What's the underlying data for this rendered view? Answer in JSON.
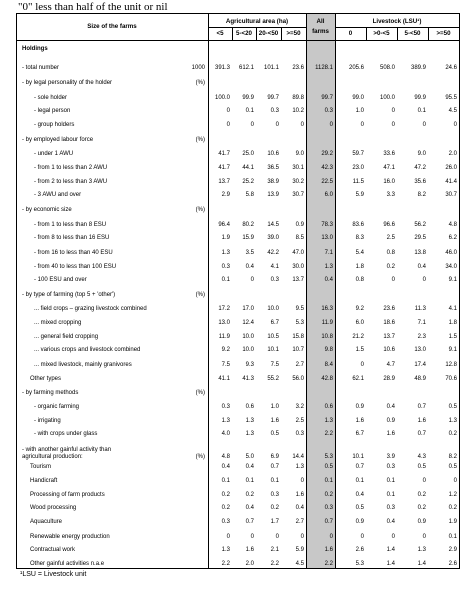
{
  "note": "\"0\" less than half of the unit or nil",
  "header": {
    "size_label": "Size of the farms",
    "agri_label": "Agricultural area (ha)",
    "all_label_1": "All",
    "all_label_2": "farms",
    "lsu_label": "Livestock (LSU¹)",
    "agri_cols": [
      "<5",
      "5-<20",
      "20-<50",
      ">=50"
    ],
    "lsu_cols": [
      "0",
      ">0-<5",
      "5-<50",
      ">=50"
    ]
  },
  "rows": [
    {
      "label": "Holdings",
      "indent": 0,
      "bold": true,
      "unit": "",
      "v": []
    },
    {
      "label": "- total number",
      "indent": 0,
      "unit": "1000",
      "v": [
        "391.3",
        "612.1",
        "101.1",
        "23.6",
        "1128.1",
        "205.6",
        "508.0",
        "389.9",
        "24.6"
      ]
    },
    {
      "label": "- by legal personality of the holder",
      "indent": 0,
      "unit": "(%)",
      "v": []
    },
    {
      "label": "- sole holder",
      "indent": 2,
      "unit": "",
      "v": [
        "100.0",
        "99.9",
        "99.7",
        "89.8",
        "99.7",
        "99.0",
        "100.0",
        "99.9",
        "95.5"
      ]
    },
    {
      "label": "- legal person",
      "indent": 2,
      "unit": "",
      "v": [
        "0",
        "0.1",
        "0.3",
        "10.2",
        "0.3",
        "1.0",
        "0",
        "0.1",
        "4.5"
      ]
    },
    {
      "label": "- group holders",
      "indent": 2,
      "unit": "",
      "v": [
        "0",
        "0",
        "0",
        "0",
        "0",
        "0",
        "0",
        "0",
        "0"
      ]
    },
    {
      "label": "- by employed labour force",
      "indent": 0,
      "unit": "(%)",
      "v": []
    },
    {
      "label": "- under 1 AWU",
      "indent": 2,
      "unit": "",
      "v": [
        "41.7",
        "25.0",
        "10.6",
        "9.0",
        "29.2",
        "59.7",
        "33.6",
        "9.0",
        "2.0"
      ]
    },
    {
      "label": "- from 1 to less than 2 AWU",
      "indent": 2,
      "unit": "",
      "v": [
        "41.7",
        "44.1",
        "36.5",
        "30.1",
        "42.3",
        "23.0",
        "47.1",
        "47.2",
        "26.0"
      ]
    },
    {
      "label": "- from 2 to less than 3 AWU",
      "indent": 2,
      "unit": "",
      "v": [
        "13.7",
        "25.2",
        "38.9",
        "30.2",
        "22.5",
        "11.5",
        "16.0",
        "35.6",
        "41.4"
      ]
    },
    {
      "label": "- 3 AWU and over",
      "indent": 2,
      "unit": "",
      "v": [
        "2.9",
        "5.8",
        "13.9",
        "30.7",
        "6.0",
        "5.9",
        "3.3",
        "8.2",
        "30.7"
      ]
    },
    {
      "label": "- by economic size",
      "indent": 0,
      "unit": "(%)",
      "v": []
    },
    {
      "label": "- from 1 to less than 8 ESU",
      "indent": 2,
      "unit": "",
      "v": [
        "96.4",
        "80.2",
        "14.5",
        "0.9",
        "78.3",
        "83.6",
        "96.6",
        "56.2",
        "4.8"
      ]
    },
    {
      "label": "- from 8 to less than 16 ESU",
      "indent": 2,
      "unit": "",
      "v": [
        "1.9",
        "15.9",
        "39.0",
        "8.5",
        "13.0",
        "8.3",
        "2.5",
        "29.5",
        "6.2"
      ]
    },
    {
      "label": "- from 16 to less than 40 ESU",
      "indent": 2,
      "unit": "",
      "v": [
        "1.3",
        "3.5",
        "42.2",
        "47.0",
        "7.1",
        "5.4",
        "0.8",
        "13.8",
        "46.0"
      ]
    },
    {
      "label": "- from 40 to less than 100 ESU",
      "indent": 2,
      "unit": "",
      "v": [
        "0.3",
        "0.4",
        "4.1",
        "30.0",
        "1.3",
        "1.8",
        "0.2",
        "0.4",
        "34.0"
      ]
    },
    {
      "label": "- 100 ESU and over",
      "indent": 2,
      "unit": "",
      "v": [
        "0.1",
        "0",
        "0.3",
        "13.7",
        "0.4",
        "0.8",
        "0",
        "0",
        "9.1"
      ]
    },
    {
      "label": "- by type of farming (top 5 + 'other')",
      "indent": 0,
      "unit": "(%)",
      "v": []
    },
    {
      "label": "... field crops – grazing livestock combined",
      "indent": 2,
      "unit": "",
      "v": [
        "17.2",
        "17.0",
        "10.0",
        "9.5",
        "16.3",
        "9.2",
        "23.6",
        "11.3",
        "4.1"
      ]
    },
    {
      "label": "... mixed cropping",
      "indent": 2,
      "unit": "",
      "v": [
        "13.0",
        "12.4",
        "6.7",
        "5.3",
        "11.9",
        "6.0",
        "18.6",
        "7.1",
        "1.8"
      ]
    },
    {
      "label": "... general field cropping",
      "indent": 2,
      "unit": "",
      "v": [
        "11.9",
        "10.0",
        "10.5",
        "15.8",
        "10.8",
        "21.2",
        "13.7",
        "2.3",
        "1.5"
      ]
    },
    {
      "label": "... various crops and livestock combined",
      "indent": 2,
      "unit": "",
      "v": [
        "9.2",
        "10.0",
        "10.1",
        "10.7",
        "9.8",
        "1.5",
        "10.6",
        "13.0",
        "9.1"
      ]
    },
    {
      "label": "... mixed livestock, mainly granivores",
      "indent": 2,
      "unit": "",
      "v": [
        "7.5",
        "9.3",
        "7.5",
        "2.7",
        "8.4",
        "0",
        "4.7",
        "17.4",
        "12.8"
      ]
    },
    {
      "label": "Other types",
      "indent": 1,
      "unit": "",
      "v": [
        "41.1",
        "41.3",
        "55.2",
        "56.0",
        "42.8",
        "62.1",
        "28.9",
        "48.9",
        "70.6"
      ]
    },
    {
      "label": "- by farming methods",
      "indent": 0,
      "unit": "(%)",
      "v": []
    },
    {
      "label": "- organic farming",
      "indent": 2,
      "unit": "",
      "v": [
        "0.3",
        "0.6",
        "1.0",
        "3.2",
        "0.6",
        "0.9",
        "0.4",
        "0.7",
        "0.5"
      ]
    },
    {
      "label": "- irrigating",
      "indent": 2,
      "unit": "",
      "v": [
        "1.3",
        "1.3",
        "1.6",
        "2.5",
        "1.3",
        "1.6",
        "0.9",
        "1.6",
        "1.3"
      ]
    },
    {
      "label": "- with crops under glass",
      "indent": 2,
      "unit": "",
      "v": [
        "4.0",
        "1.3",
        "0.5",
        "0.3",
        "2.2",
        "6.7",
        "1.6",
        "0.7",
        "0.2"
      ]
    },
    {
      "label": "- with another gainful activity than",
      "label2": "agricultural production:",
      "indent": 0,
      "unit": "(%)",
      "v": [
        "4.8",
        "5.0",
        "6.9",
        "14.4",
        "5.3",
        "10.1",
        "3.9",
        "4.3",
        "8.2"
      ]
    },
    {
      "label": "Tourism",
      "indent": 1,
      "unit": "",
      "v": [
        "0.4",
        "0.4",
        "0.7",
        "1.3",
        "0.5",
        "0.7",
        "0.3",
        "0.5",
        "0.5"
      ]
    },
    {
      "label": "Handicraft",
      "indent": 1,
      "unit": "",
      "v": [
        "0.1",
        "0.1",
        "0.1",
        "0",
        "0.1",
        "0.1",
        "0.1",
        "0",
        "0"
      ]
    },
    {
      "label": "Processing of farm products",
      "indent": 1,
      "unit": "",
      "v": [
        "0.2",
        "0.2",
        "0.3",
        "1.6",
        "0.2",
        "0.4",
        "0.1",
        "0.2",
        "1.2"
      ]
    },
    {
      "label": "Wood processing",
      "indent": 1,
      "unit": "",
      "v": [
        "0.2",
        "0.4",
        "0.2",
        "0.4",
        "0.3",
        "0.5",
        "0.3",
        "0.2",
        "0.2"
      ]
    },
    {
      "label": "Aquaculture",
      "indent": 1,
      "unit": "",
      "v": [
        "0.3",
        "0.7",
        "1.7",
        "2.7",
        "0.7",
        "0.9",
        "0.4",
        "0.9",
        "1.9"
      ]
    },
    {
      "label": "Renewable energy production",
      "indent": 1,
      "unit": "",
      "v": [
        "0",
        "0",
        "0",
        "0",
        "0",
        "0",
        "0",
        "0",
        "0.1"
      ]
    },
    {
      "label": "Contractual work",
      "indent": 1,
      "unit": "",
      "v": [
        "1.3",
        "1.6",
        "2.1",
        "5.9",
        "1.6",
        "2.6",
        "1.4",
        "1.3",
        "2.9"
      ]
    },
    {
      "label": "Other gainful activities n.a.e",
      "indent": 1,
      "unit": "",
      "v": [
        "2.2",
        "2.0",
        "2.2",
        "4.5",
        "2.2",
        "5.3",
        "1.4",
        "1.4",
        "2.6"
      ]
    }
  ],
  "footnote": "¹LSU = Livestock unit"
}
